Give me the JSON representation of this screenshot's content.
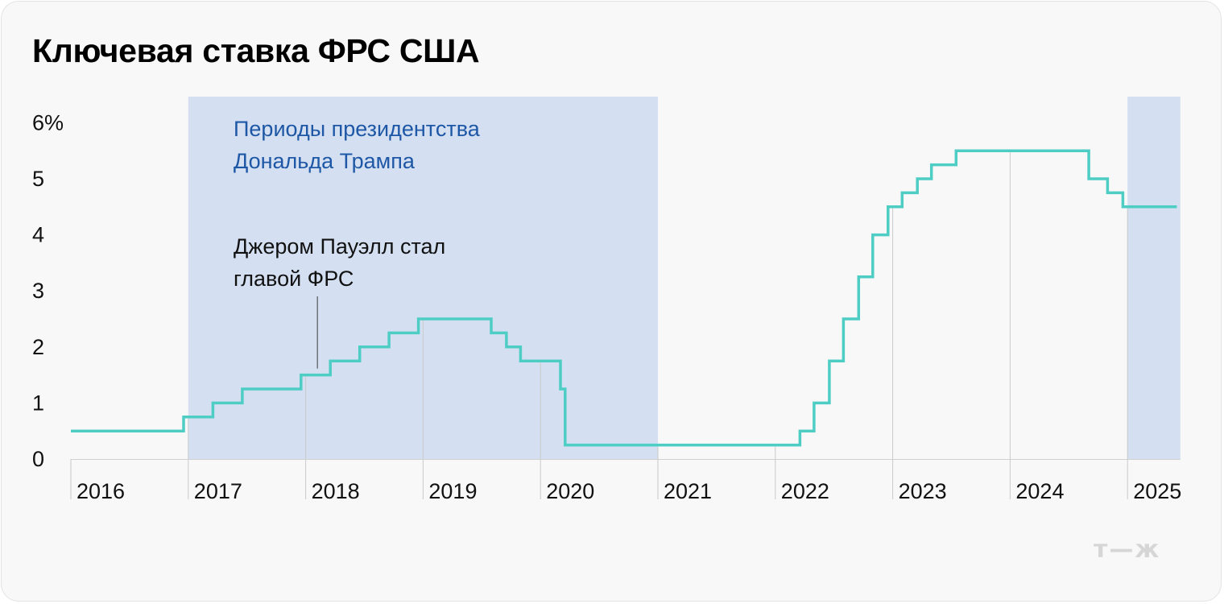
{
  "title": "Ключевая ставка ФРС США",
  "logo": "т—ж",
  "colors": {
    "line": "#4ecdc4",
    "shade": "#d4e0f2",
    "shade_label": "#1d57a5",
    "grid": "#c9c9c9"
  },
  "chart_data": {
    "type": "line",
    "step": true,
    "title": "Ключевая ставка ФРС США",
    "x_ticks": [
      "2016",
      "2017",
      "2018",
      "2019",
      "2020",
      "2021",
      "2022",
      "2023",
      "2024",
      "2025"
    ],
    "y_ticks": [
      "0",
      "1",
      "2",
      "3",
      "4",
      "5",
      "6%"
    ],
    "xlim": [
      2016,
      2025.45
    ],
    "ylim": [
      0,
      6.1
    ],
    "series": [
      {
        "points": [
          [
            2016.0,
            0.5
          ],
          [
            2016.96,
            0.5
          ],
          [
            2016.96,
            0.75
          ],
          [
            2017.21,
            0.75
          ],
          [
            2017.21,
            1.0
          ],
          [
            2017.46,
            1.0
          ],
          [
            2017.46,
            1.25
          ],
          [
            2017.96,
            1.25
          ],
          [
            2017.96,
            1.5
          ],
          [
            2018.21,
            1.5
          ],
          [
            2018.21,
            1.75
          ],
          [
            2018.46,
            1.75
          ],
          [
            2018.46,
            2.0
          ],
          [
            2018.71,
            2.0
          ],
          [
            2018.71,
            2.25
          ],
          [
            2018.96,
            2.25
          ],
          [
            2018.96,
            2.5
          ],
          [
            2019.58,
            2.5
          ],
          [
            2019.58,
            2.25
          ],
          [
            2019.71,
            2.25
          ],
          [
            2019.71,
            2.0
          ],
          [
            2019.83,
            2.0
          ],
          [
            2019.83,
            1.75
          ],
          [
            2020.17,
            1.75
          ],
          [
            2020.17,
            1.25
          ],
          [
            2020.21,
            1.25
          ],
          [
            2020.21,
            0.25
          ],
          [
            2022.21,
            0.25
          ],
          [
            2022.21,
            0.5
          ],
          [
            2022.33,
            0.5
          ],
          [
            2022.33,
            1.0
          ],
          [
            2022.46,
            1.0
          ],
          [
            2022.46,
            1.75
          ],
          [
            2022.58,
            1.75
          ],
          [
            2022.58,
            2.5
          ],
          [
            2022.71,
            2.5
          ],
          [
            2022.71,
            3.25
          ],
          [
            2022.83,
            3.25
          ],
          [
            2022.83,
            4.0
          ],
          [
            2022.96,
            4.0
          ],
          [
            2022.96,
            4.5
          ],
          [
            2023.08,
            4.5
          ],
          [
            2023.08,
            4.75
          ],
          [
            2023.21,
            4.75
          ],
          [
            2023.21,
            5.0
          ],
          [
            2023.33,
            5.0
          ],
          [
            2023.33,
            5.25
          ],
          [
            2023.54,
            5.25
          ],
          [
            2023.54,
            5.5
          ],
          [
            2024.67,
            5.5
          ],
          [
            2024.67,
            5.0
          ],
          [
            2024.83,
            5.0
          ],
          [
            2024.83,
            4.75
          ],
          [
            2024.96,
            4.75
          ],
          [
            2024.96,
            4.5
          ],
          [
            2025.42,
            4.5
          ]
        ]
      }
    ],
    "shaded_periods": [
      {
        "start": 2017.0,
        "end": 2021.0
      },
      {
        "start": 2025.0,
        "end": 2025.45
      }
    ],
    "annotations": {
      "shade_label": [
        "Периоды президентства",
        "Дональда Трампа"
      ],
      "powell": {
        "lines": [
          "Джером Пауэлл стал",
          "главой ФРС"
        ],
        "x": 2018.1,
        "y": 1.5
      }
    },
    "grid": "vertical at year boundaries",
    "legend": "none"
  }
}
